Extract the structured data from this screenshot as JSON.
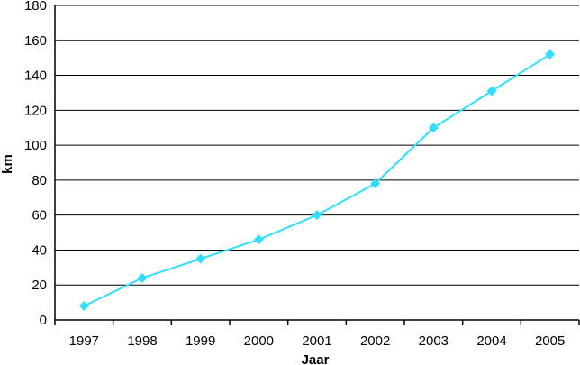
{
  "chart_data": {
    "type": "line",
    "title": "",
    "xlabel": "Jaar",
    "ylabel": "km",
    "categories": [
      "1997",
      "1998",
      "1999",
      "2000",
      "2001",
      "2002",
      "2003",
      "2004",
      "2005"
    ],
    "series": [
      {
        "values": [
          8,
          24,
          35,
          46,
          60,
          78,
          110,
          131,
          152
        ],
        "color": "#33ddff",
        "marker": "diamond"
      }
    ],
    "ylim": [
      0,
      180
    ],
    "yticks": [
      0,
      20,
      40,
      60,
      80,
      100,
      120,
      140,
      160,
      180
    ],
    "grid": "horizontal",
    "legend": "none"
  }
}
